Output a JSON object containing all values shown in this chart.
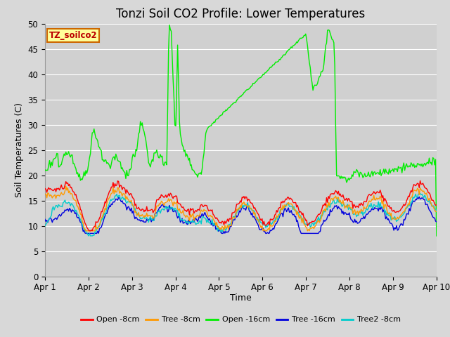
{
  "title": "Tonzi Soil CO2 Profile: Lower Temperatures",
  "ylabel": "Soil Temperatures (C)",
  "xlabel": "Time",
  "watermark_text": "TZ_soilco2",
  "ylim": [
    0,
    50
  ],
  "yticks": [
    0,
    5,
    10,
    15,
    20,
    25,
    30,
    35,
    40,
    45,
    50
  ],
  "x_labels": [
    "Apr 1",
    "Apr 2",
    "Apr 3",
    "Apr 4",
    "Apr 5",
    "Apr 6",
    "Apr 7",
    "Apr 8",
    "Apr 9",
    "Apr 10"
  ],
  "n_days": 9,
  "points_per_day": 48,
  "background_color": "#d8d8d8",
  "plot_bg_color": "#d0d0d0",
  "grid_color": "#ffffff",
  "series_colors": {
    "open8": "#ff0000",
    "tree8": "#ff9900",
    "open16": "#00ee00",
    "tree16": "#0000dd",
    "tree2_8": "#00cccc"
  },
  "legend_labels": [
    "Open -8cm",
    "Tree -8cm",
    "Open -16cm",
    "Tree -16cm",
    "Tree2 -8cm"
  ],
  "title_fontsize": 12,
  "axis_label_fontsize": 9,
  "tick_fontsize": 8.5
}
